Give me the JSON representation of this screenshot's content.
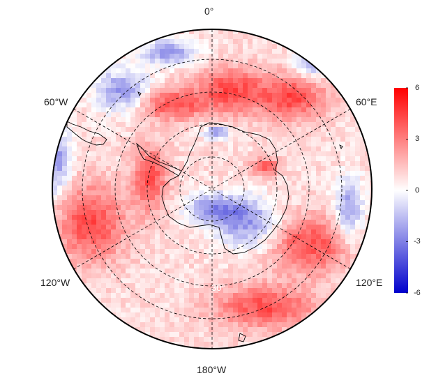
{
  "map": {
    "projection": "south-polar-stereographic",
    "longitude_labels": [
      "0°",
      "60°E",
      "120°E",
      "180°W",
      "120°W",
      "60°W"
    ],
    "latitude_label": "30°",
    "colorbar": {
      "min": -6,
      "max": 6,
      "ticks": [
        "6",
        "3",
        "0",
        "-3",
        "-6"
      ],
      "colors": {
        "low": "#0000cc",
        "mid": "#ffffff",
        "high": "#ff0000"
      }
    },
    "coastline_color": "#000000",
    "grid_color": "#000000"
  }
}
